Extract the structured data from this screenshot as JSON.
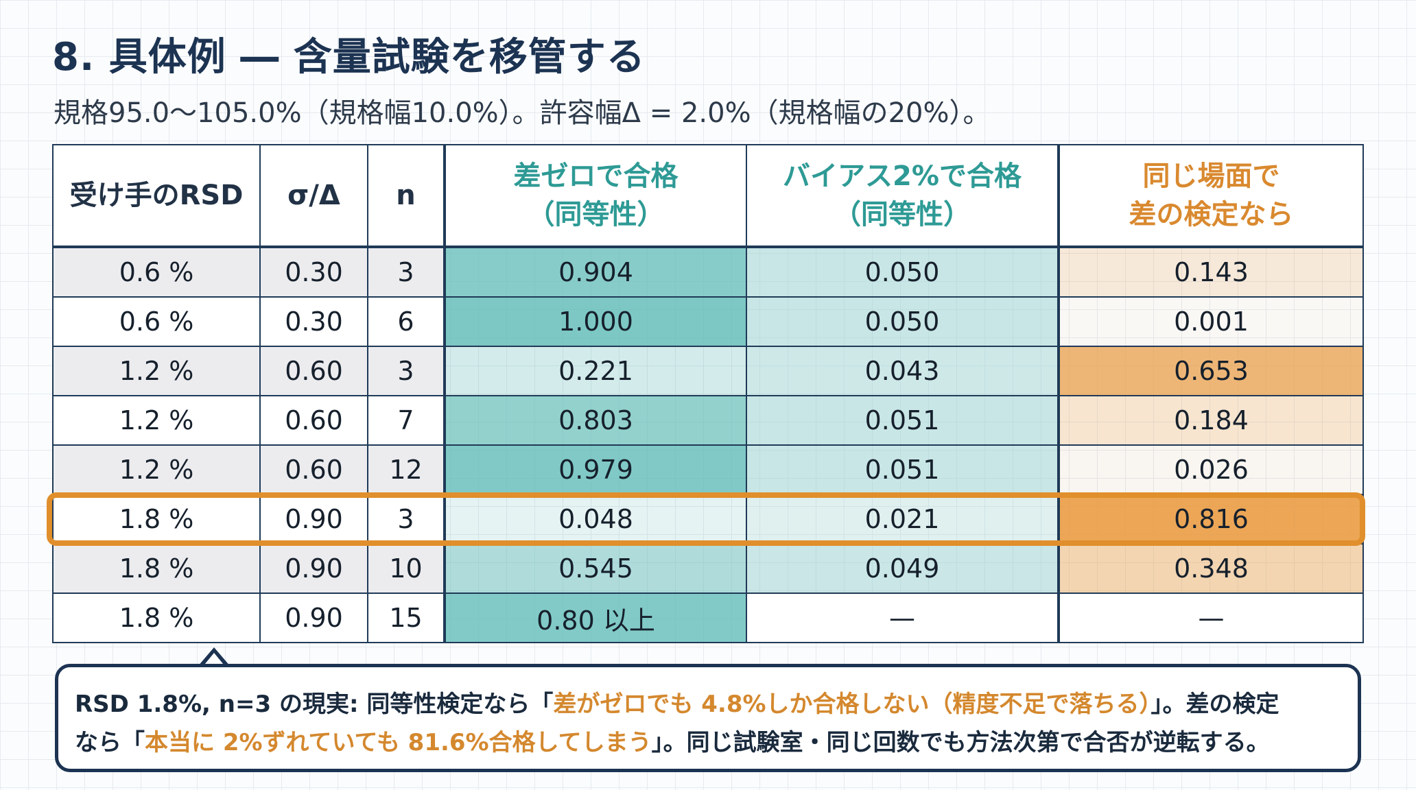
{
  "title": "8. 具体例 ― 含量試験を移管する",
  "subtitle": "規格95.0〜105.0%（規格幅10.0%）。許容幅Δ = 2.0%（規格幅の20%）。",
  "table": {
    "headers": {
      "rsd": "受け手のRSD",
      "ratio": "σ/Δ",
      "n": "n",
      "zero_line1": "差ゼロで合格",
      "zero_line2": "（同等性）",
      "bias_line1": "バイアス2%で合格",
      "bias_line2": "（同等性）",
      "diff_line1": "同じ場面で",
      "diff_line2": "差の検定なら"
    },
    "rows": [
      {
        "rsd": "0.6 %",
        "ratio": "0.30",
        "n": "3",
        "zero": "0.904",
        "bias": "0.050",
        "diff": "0.143"
      },
      {
        "rsd": "0.6 %",
        "ratio": "0.30",
        "n": "6",
        "zero": "1.000",
        "bias": "0.050",
        "diff": "0.001"
      },
      {
        "rsd": "1.2 %",
        "ratio": "0.60",
        "n": "3",
        "zero": "0.221",
        "bias": "0.043",
        "diff": "0.653"
      },
      {
        "rsd": "1.2 %",
        "ratio": "0.60",
        "n": "7",
        "zero": "0.803",
        "bias": "0.051",
        "diff": "0.184"
      },
      {
        "rsd": "1.2 %",
        "ratio": "0.60",
        "n": "12",
        "zero": "0.979",
        "bias": "0.051",
        "diff": "0.026"
      },
      {
        "rsd": "1.8 %",
        "ratio": "0.90",
        "n": "3",
        "zero": "0.048",
        "bias": "0.021",
        "diff": "0.816"
      },
      {
        "rsd": "1.8 %",
        "ratio": "0.90",
        "n": "10",
        "zero": "0.545",
        "bias": "0.049",
        "diff": "0.348"
      },
      {
        "rsd": "1.8 %",
        "ratio": "0.90",
        "n": "15",
        "zero": "0.80 以上",
        "bias": "—",
        "diff": "—"
      }
    ],
    "highlight_row": 5
  },
  "callout": {
    "line1_prefix": "RSD 1.8%, n=3 の現実: 同等性検定なら「",
    "line1_highlight": "差がゼロでも 4.8%しか合格しない（精度不足で落ちる）",
    "line1_suffix": "」。差の検定",
    "line2_prefix": "なら「",
    "line2_highlight": "本当に 2%ずれていても 81.6%合格してしまう",
    "line2_suffix": "」。同じ試験室・同じ回数でも方法次第で合否が逆転する。"
  },
  "colors": {
    "teal_header": "#2e9a95",
    "orange_header": "#d9892f",
    "highlight_border": "#e08f2c",
    "navy": "#1c3352"
  }
}
